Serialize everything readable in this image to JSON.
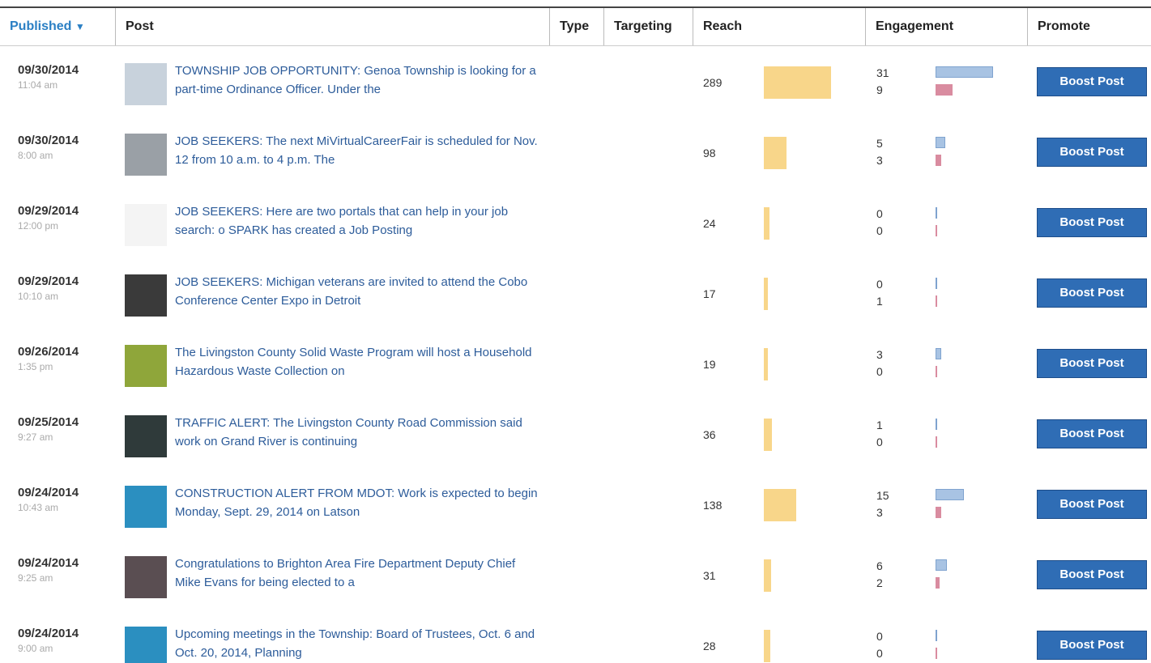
{
  "header": {
    "published": "Published",
    "post": "Post",
    "type": "Type",
    "targeting": "Targeting",
    "reach": "Reach",
    "engagement": "Engagement",
    "promote": "Promote"
  },
  "button_label": "Boost Post",
  "rows": [
    {
      "date": "09/30/2014",
      "time": "11:04 am",
      "text": "TOWNSHIP JOB OPPORTUNITY: Genoa Township is looking for a part-time Ordinance Officer. Under the",
      "reach": 289,
      "engagement": [
        31,
        9
      ]
    },
    {
      "date": "09/30/2014",
      "time": "8:00 am",
      "text": "JOB SEEKERS: The next MiVirtualCareerFair is scheduled for Nov. 12 from 10 a.m. to 4 p.m. The",
      "reach": 98,
      "engagement": [
        5,
        3
      ]
    },
    {
      "date": "09/29/2014",
      "time": "12:00 pm",
      "text": "JOB SEEKERS: Here are two portals that can help in your job search: o SPARK has created a Job Posting",
      "reach": 24,
      "engagement": [
        0,
        0
      ]
    },
    {
      "date": "09/29/2014",
      "time": "10:10 am",
      "text": "JOB SEEKERS: Michigan veterans are invited to attend the Cobo Conference Center Expo in Detroit",
      "reach": 17,
      "engagement": [
        0,
        1
      ]
    },
    {
      "date": "09/26/2014",
      "time": "1:35 pm",
      "text": "The Livingston County Solid Waste Program will host a Household Hazardous Waste Collection on",
      "reach": 19,
      "engagement": [
        3,
        0
      ]
    },
    {
      "date": "09/25/2014",
      "time": "9:27 am",
      "text": "TRAFFIC ALERT: The Livingston County Road Commission said work on Grand River is continuing",
      "reach": 36,
      "engagement": [
        1,
        0
      ]
    },
    {
      "date": "09/24/2014",
      "time": "10:43 am",
      "text": "CONSTRUCTION ALERT FROM MDOT: Work is expected to begin Monday, Sept. 29, 2014 on Latson",
      "reach": 138,
      "engagement": [
        15,
        3
      ]
    },
    {
      "date": "09/24/2014",
      "time": "9:25 am",
      "text": "Congratulations to Brighton Area Fire Department Deputy Chief Mike Evans for being elected to a",
      "reach": 31,
      "engagement": [
        6,
        2
      ]
    },
    {
      "date": "09/24/2014",
      "time": "9:00 am",
      "text": "Upcoming meetings in the Township: Board of Trustees, Oct. 6 and Oct. 20, 2014, Planning",
      "reach": 28,
      "engagement": [
        0,
        0
      ]
    }
  ]
}
